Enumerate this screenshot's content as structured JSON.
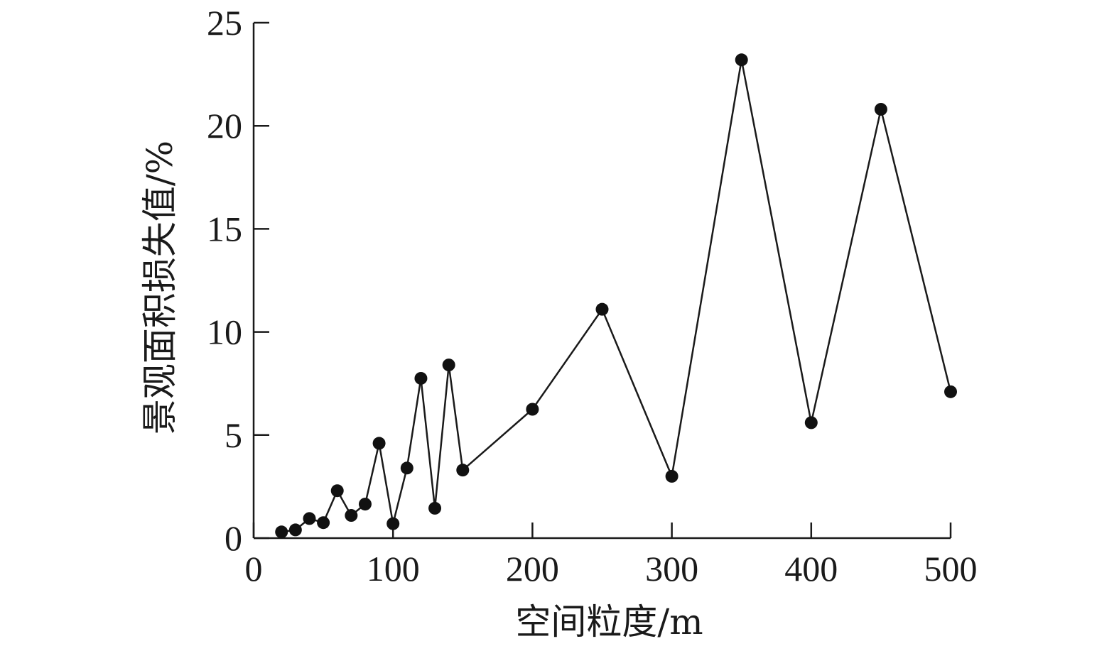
{
  "chart_data": {
    "type": "line",
    "xlabel": "空间粒度/m",
    "ylabel": "景观面积损失值/%",
    "xlim": [
      0,
      500
    ],
    "ylim": [
      0,
      25
    ],
    "xticks": [
      0,
      100,
      200,
      300,
      400,
      500
    ],
    "yticks": [
      0,
      5,
      10,
      15,
      20,
      25
    ],
    "grid": false,
    "legend": "none",
    "marker": "filled-circle",
    "line_color": "#1a1a1a",
    "series": [
      {
        "x": [
          20,
          30,
          40,
          50,
          60,
          70,
          80,
          90,
          100,
          110,
          120,
          130,
          140,
          150,
          200,
          250,
          300,
          350,
          400,
          450,
          500
        ],
        "values": [
          0.3,
          0.4,
          0.95,
          0.75,
          2.3,
          1.1,
          1.65,
          4.6,
          0.7,
          3.4,
          7.75,
          1.45,
          8.4,
          3.3,
          6.25,
          11.1,
          3.0,
          23.2,
          5.6,
          20.8,
          7.1
        ]
      }
    ]
  }
}
